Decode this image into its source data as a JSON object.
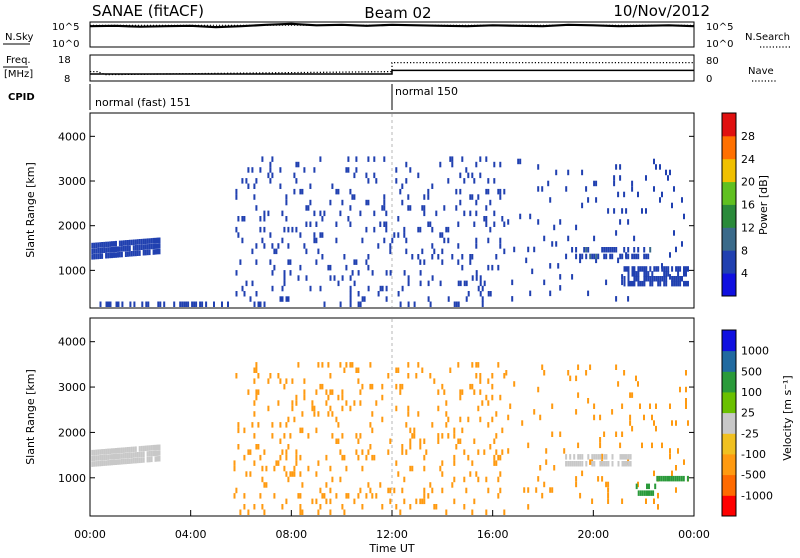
{
  "header": {
    "station": "SANAE (fitACF)",
    "beam": "Beam 02",
    "date": "10/Nov/2012"
  },
  "chart_data": [
    {
      "type": "line",
      "panel": "nsky",
      "left_label": "N.Sky",
      "right_label": "N.Search",
      "left_ticks": [
        "10^5",
        "10^0"
      ],
      "right_ticks": [
        "10^5",
        "10^0"
      ],
      "series": [
        {
          "name": "N.Sky",
          "style": "solid",
          "x": [
            0,
            1,
            2,
            3,
            4,
            5,
            6,
            7,
            8,
            9,
            10,
            11,
            12,
            13,
            14,
            15,
            16,
            17,
            18,
            19,
            20,
            21,
            22,
            23,
            24
          ],
          "y": [
            4.3,
            4.4,
            4.2,
            4.3,
            4.4,
            4.1,
            4.3,
            4.6,
            4.8,
            4.5,
            4.6,
            4.4,
            4.6,
            4.5,
            4.4,
            4.3,
            4.5,
            4.4,
            4.3,
            4.6,
            4.5,
            4.3,
            4.4,
            4.5,
            4.3
          ]
        },
        {
          "name": "N.Search",
          "style": "dotted",
          "x": [
            0,
            24
          ],
          "y": [
            4.5,
            4.5
          ]
        }
      ]
    },
    {
      "type": "line",
      "panel": "freq",
      "left_label": "Freq.",
      "left_unit": "[MHz]",
      "right_label": "Nave",
      "left_ticks": [
        18,
        8
      ],
      "right_ticks": [
        80,
        0
      ],
      "series": [
        {
          "name": "Freq.",
          "style": "solid",
          "x": [
            0,
            12.0,
            12.0,
            24
          ],
          "y": [
            10.5,
            10.5,
            12.0,
            12.0
          ]
        },
        {
          "name": "Nave",
          "style": "dotted",
          "x": [
            0,
            0.3,
            0.6,
            12.0,
            12.0,
            24
          ],
          "y": [
            28,
            28,
            18,
            28,
            58,
            58
          ]
        }
      ]
    },
    {
      "type": "table",
      "panel": "cpid",
      "label": "CPID",
      "segments": [
        {
          "start": 0,
          "end": 12.0,
          "name": "normal (fast) 151"
        },
        {
          "start": 12.0,
          "end": 24,
          "name": "normal 150"
        }
      ]
    },
    {
      "type": "heatmap",
      "panel": "power",
      "ylabel": "Slant Range [km]",
      "ylim": [
        180,
        4500
      ],
      "yticks": [
        1000,
        2000,
        3000,
        4000
      ],
      "colorbar": {
        "label": "Power [dB]",
        "ticks": [
          4,
          8,
          12,
          16,
          20,
          24,
          28
        ]
      },
      "clusters": [
        {
          "x0": 0.05,
          "x1": 2.8,
          "r0": 1240,
          "r1": 1620,
          "v": 6,
          "density": 0.95,
          "slope": 120
        },
        {
          "x0": 0.3,
          "x1": 5.6,
          "r0": 180,
          "r1": 260,
          "v": 6,
          "density": 0.5,
          "slope": 0
        },
        {
          "x0": 5.7,
          "x1": 16.2,
          "r0": 180,
          "r1": 1000,
          "v": 6,
          "density": 0.08,
          "slope": 0
        },
        {
          "x0": 5.7,
          "x1": 16.5,
          "r0": 1000,
          "r1": 3550,
          "v": 6,
          "density": 0.09,
          "slope": 0
        },
        {
          "x0": 16.5,
          "x1": 23.8,
          "r0": 300,
          "r1": 3500,
          "v": 6,
          "density": 0.035,
          "slope": 0
        },
        {
          "x0": 18.8,
          "x1": 22.3,
          "r0": 1250,
          "r1": 1550,
          "v": 7,
          "density": 0.5,
          "slope": 0
        },
        {
          "x0": 21.2,
          "x1": 23.8,
          "r0": 640,
          "r1": 1080,
          "v": 6,
          "density": 0.6,
          "slope": 0
        }
      ]
    },
    {
      "type": "heatmap",
      "panel": "velocity",
      "ylabel": "Slant Range [km]",
      "xlabel": "Time UT",
      "ylim": [
        180,
        4500
      ],
      "yticks": [
        1000,
        2000,
        3000,
        4000
      ],
      "xlim": [
        0,
        24
      ],
      "xticks": [
        "00:00",
        "04:00",
        "08:00",
        "12:00",
        "16:00",
        "20:00",
        "00:00"
      ],
      "colorbar": {
        "label": "Velocity [m s⁻¹]",
        "ticks": [
          1000,
          500,
          100,
          25,
          -25,
          -100,
          -500,
          -1000
        ]
      },
      "clusters": [
        {
          "x0": 0.05,
          "x1": 2.8,
          "r0": 1240,
          "r1": 1620,
          "v": 0,
          "density": 0.95,
          "slope": 120
        },
        {
          "x0": 5.7,
          "x1": 16.5,
          "r0": 180,
          "r1": 3550,
          "v": -150,
          "density": 0.09,
          "slope": 0
        },
        {
          "x0": 16.5,
          "x1": 23.8,
          "r0": 300,
          "r1": 3500,
          "v": -150,
          "density": 0.035,
          "slope": 0
        },
        {
          "x0": 18.8,
          "x1": 21.6,
          "r0": 1250,
          "r1": 1550,
          "v": 0,
          "density": 0.55,
          "slope": 0
        },
        {
          "x0": 21.6,
          "x1": 22.5,
          "r0": 600,
          "r1": 900,
          "v": 150,
          "density": 0.6,
          "slope": 0
        },
        {
          "x0": 22.5,
          "x1": 23.8,
          "r0": 920,
          "r1": 1100,
          "v": 300,
          "density": 0.6,
          "slope": 0
        }
      ]
    }
  ],
  "palettes": {
    "power": [
      "#1010e0",
      "#2040b0",
      "#3a6a8a",
      "#2a8a3a",
      "#60c020",
      "#f0c000",
      "#ff7000",
      "#e01010"
    ],
    "velocity": [
      "#ff0000",
      "#ff6a00",
      "#ff9a10",
      "#f0c020",
      "#c8c8c8",
      "#6ac000",
      "#2a9a3a",
      "#206aa0",
      "#1010e0"
    ]
  }
}
